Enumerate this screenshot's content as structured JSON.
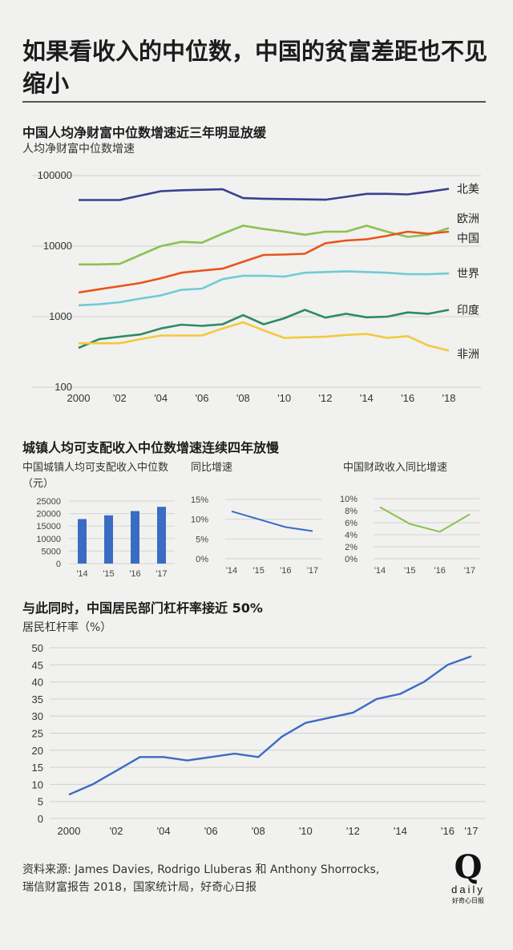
{
  "headline": "如果看收入的中位数，中国的贫富差距也不见缩小",
  "chart_data": [
    {
      "type": "line",
      "title": "中国人均净财富中位数增速近三年明显放缓",
      "ylabel": "人均净财富中位数增速",
      "yscale": "log",
      "ylim": [
        100,
        100000
      ],
      "yticks": [
        "100000",
        "10000",
        "1000",
        "100"
      ],
      "ytick_values": [
        100000,
        10000,
        1000,
        100
      ],
      "xlim": [
        2000,
        2018
      ],
      "xticks": [
        "2000",
        "'02",
        "'04",
        "'06",
        "'08",
        "'10",
        "'12",
        "'14",
        "'16",
        "'18"
      ],
      "xtick_values": [
        2000,
        2002,
        2004,
        2006,
        2008,
        2010,
        2012,
        2014,
        2016,
        2018
      ],
      "x": [
        2000,
        2001,
        2002,
        2003,
        2004,
        2005,
        2006,
        2007,
        2008,
        2009,
        2010,
        2011,
        2012,
        2013,
        2014,
        2015,
        2016,
        2017,
        2018
      ],
      "series": [
        {
          "name": "北美",
          "color": "#3a3f8f",
          "values": [
            45000,
            45000,
            45000,
            52000,
            60000,
            62000,
            63000,
            64000,
            48000,
            47000,
            46500,
            46000,
            45500,
            50000,
            55000,
            55000,
            54000,
            59000,
            65000
          ]
        },
        {
          "name": "欧洲",
          "color": "#8bc24f",
          "values": [
            5500,
            5500,
            5600,
            7500,
            10000,
            11500,
            11200,
            15000,
            19500,
            17500,
            16000,
            14500,
            16000,
            16000,
            19500,
            16000,
            13500,
            14500,
            18000
          ]
        },
        {
          "name": "中国",
          "color": "#e8541c",
          "values": [
            2200,
            2450,
            2700,
            3000,
            3500,
            4200,
            4500,
            4800,
            6000,
            7500,
            7600,
            7800,
            11000,
            12000,
            12500,
            14000,
            16000,
            15000,
            16000
          ]
        },
        {
          "name": "世界",
          "color": "#6fcbd6",
          "values": [
            1450,
            1500,
            1600,
            1800,
            2000,
            2400,
            2500,
            3400,
            3800,
            3800,
            3700,
            4200,
            4300,
            4400,
            4300,
            4200,
            4000,
            4000,
            4100
          ]
        },
        {
          "name": "印度",
          "color": "#2e8b62",
          "values": [
            360,
            480,
            520,
            560,
            680,
            770,
            740,
            780,
            1050,
            780,
            950,
            1250,
            970,
            1100,
            980,
            1000,
            1150,
            1100,
            1250
          ]
        },
        {
          "name": "非洲",
          "color": "#f2c93e",
          "values": [
            420,
            420,
            420,
            480,
            540,
            540,
            540,
            680,
            830,
            640,
            500,
            510,
            520,
            550,
            570,
            500,
            530,
            390,
            330
          ]
        }
      ]
    },
    {
      "type": "bar",
      "title": "中国城镇人均可支配收入中位数（元）",
      "categories": [
        "'14",
        "'15",
        "'16",
        "'17"
      ],
      "values": [
        17800,
        19300,
        21000,
        22700
      ],
      "yticks": [
        "25000",
        "20000",
        "15000",
        "10000",
        "5000",
        "0"
      ],
      "ytick_values": [
        25000,
        20000,
        15000,
        10000,
        5000,
        0
      ],
      "ylim": [
        0,
        25000
      ],
      "color": "#3b6cc4"
    },
    {
      "type": "line",
      "title": "同比增速",
      "categories": [
        "'14",
        "'15",
        "'16",
        "'17"
      ],
      "values": [
        12,
        10,
        8,
        7
      ],
      "yticks": [
        "15%",
        "10%",
        "5%",
        "0%"
      ],
      "ytick_values": [
        15,
        10,
        5,
        0
      ],
      "ylim": [
        0,
        15
      ],
      "color": "#3b6cc4"
    },
    {
      "type": "line",
      "title": "中国财政收入同比增速",
      "categories": [
        "'14",
        "'15",
        "'16",
        "'17"
      ],
      "values": [
        8.6,
        5.8,
        4.5,
        7.4
      ],
      "yticks": [
        "10%",
        "8%",
        "6%",
        "4%",
        "2%",
        "0%"
      ],
      "ytick_values": [
        10,
        8,
        6,
        4,
        2,
        0
      ],
      "ylim": [
        0,
        10
      ],
      "color": "#8bc24f"
    },
    {
      "type": "line",
      "title": "与此同时，中国居民部门杠杆率接近 50%",
      "ylabel": "居民杠杆率（%）",
      "xlim": [
        2000,
        2017
      ],
      "xticks": [
        "2000",
        "'02",
        "'04",
        "'06",
        "'08",
        "'10",
        "'12",
        "'14",
        "'16",
        "'17"
      ],
      "xtick_values": [
        2000,
        2002,
        2004,
        2006,
        2008,
        2010,
        2012,
        2014,
        2016,
        2017
      ],
      "yticks": [
        "50",
        "45",
        "40",
        "35",
        "30",
        "25",
        "20",
        "15",
        "10",
        "5",
        "0"
      ],
      "ytick_values": [
        50,
        45,
        40,
        35,
        30,
        25,
        20,
        15,
        10,
        5,
        0
      ],
      "ylim": [
        0,
        50
      ],
      "x": [
        2000,
        2001,
        2002,
        2003,
        2004,
        2005,
        2006,
        2007,
        2008,
        2009,
        2010,
        2011,
        2012,
        2013,
        2014,
        2015,
        2016,
        2017
      ],
      "values": [
        7,
        10,
        14,
        18,
        18,
        17,
        18,
        19,
        18,
        24,
        28,
        29.5,
        31,
        35,
        36.5,
        40,
        45,
        47.5
      ],
      "color": "#3b6cc4"
    }
  ],
  "section2_title": "城镇人均可支配收入中位数增速连续四年放慢",
  "footer": {
    "line1": "资料来源: James Davies, Rodrigo Lluberas 和 Anthony Shorrocks,",
    "line2": "瑞信财富报告 2018，国家统计局，好奇心日报"
  },
  "logo": {
    "mark": "Q",
    "word": "daily",
    "tagline": "好奇心日报"
  }
}
